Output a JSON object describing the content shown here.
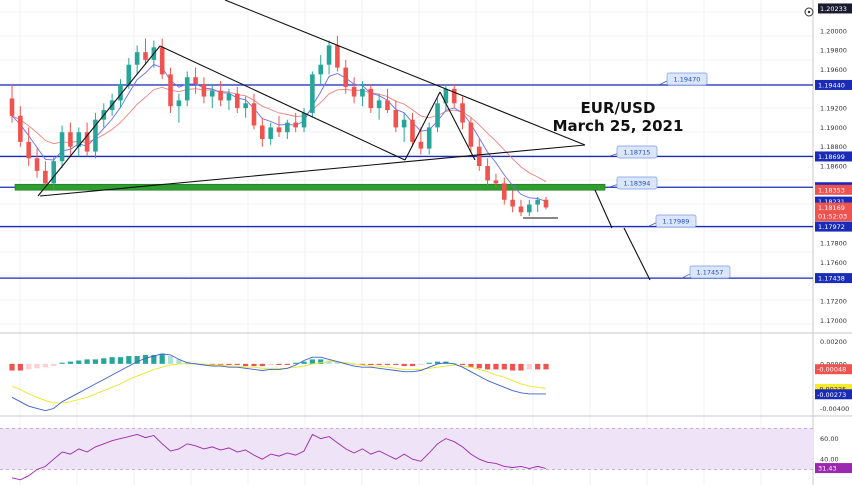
{
  "colors": {
    "bull": "#26a69a",
    "bear": "#ef5350",
    "level_line": "#1a2bb8",
    "support_band": "#2e9e2e",
    "ema_fast": "#6b6bff",
    "ema_slow": "#f08080",
    "macd_line": "#3c5fd0",
    "signal_line": "#e6e62a",
    "rsi_line": "#9c27b0",
    "rsi_bg": "#efe3f7",
    "grid": "#f0f0f0",
    "callout_bg": "#dbe6fb",
    "tag_blue": "#1a2bb8",
    "tag_red": "#ef5350",
    "tag_dark": "#1b1b2f",
    "tag_yellow": "#f5ea2a"
  },
  "chart_data": [
    {
      "type": "candlestick",
      "title": "EUR/USD",
      "subtitle": "March 25, 2021",
      "ylim": [
        1.169,
        1.203
      ],
      "y_ticks": [
        "1.20233",
        "1.20000",
        "1.19800",
        "1.19600",
        "1.19200",
        "1.19000",
        "1.18800",
        "1.18600",
        "1.17800",
        "1.17600",
        "1.17200",
        "1.17000"
      ],
      "levels": [
        {
          "value": 1.1944,
          "label": "1.19440",
          "callout": "1.19470",
          "tag": "blue"
        },
        {
          "value": 1.18699,
          "label": "1.18699",
          "callout": "1.18715",
          "tag": "blue"
        },
        {
          "value": 1.1838,
          "label": "1.18380",
          "callout": "1.18394",
          "tag": "blue"
        },
        {
          "value": 1.17972,
          "label": "1.17972",
          "callout": "1.17989",
          "tag": "blue"
        },
        {
          "value": 1.17438,
          "label": "1.17438",
          "callout": "1.17457",
          "tag": "blue"
        }
      ],
      "price_tags": [
        {
          "value": 1.18353,
          "label": "1.18353",
          "tag": "red"
        },
        {
          "value": 1.18231,
          "label": "1.18231",
          "tag": "blue"
        },
        {
          "value": 1.18169,
          "label": "1.18169",
          "tag": "red"
        },
        {
          "value": 1.1808,
          "label": "01:52:03",
          "tag": "red"
        }
      ],
      "candles": [
        {
          "o": 1.193,
          "h": 1.1945,
          "l": 1.1905,
          "c": 1.1912
        },
        {
          "o": 1.1912,
          "h": 1.1922,
          "l": 1.188,
          "c": 1.1885
        },
        {
          "o": 1.1885,
          "h": 1.19,
          "l": 1.186,
          "c": 1.1868
        },
        {
          "o": 1.1868,
          "h": 1.1878,
          "l": 1.1848,
          "c": 1.1855
        },
        {
          "o": 1.1855,
          "h": 1.1865,
          "l": 1.1838,
          "c": 1.1842
        },
        {
          "o": 1.1842,
          "h": 1.187,
          "l": 1.1835,
          "c": 1.1865
        },
        {
          "o": 1.1865,
          "h": 1.1902,
          "l": 1.1858,
          "c": 1.1895
        },
        {
          "o": 1.1895,
          "h": 1.1905,
          "l": 1.187,
          "c": 1.188
        },
        {
          "o": 1.188,
          "h": 1.19,
          "l": 1.187,
          "c": 1.1895
        },
        {
          "o": 1.1895,
          "h": 1.1905,
          "l": 1.187,
          "c": 1.1875
        },
        {
          "o": 1.1875,
          "h": 1.1915,
          "l": 1.1868,
          "c": 1.1908
        },
        {
          "o": 1.1908,
          "h": 1.1925,
          "l": 1.19,
          "c": 1.1918
        },
        {
          "o": 1.1918,
          "h": 1.1935,
          "l": 1.1912,
          "c": 1.1928
        },
        {
          "o": 1.1928,
          "h": 1.195,
          "l": 1.192,
          "c": 1.1945
        },
        {
          "o": 1.1945,
          "h": 1.1972,
          "l": 1.194,
          "c": 1.1965
        },
        {
          "o": 1.1965,
          "h": 1.1985,
          "l": 1.1955,
          "c": 1.1978
        },
        {
          "o": 1.1978,
          "h": 1.1992,
          "l": 1.1965,
          "c": 1.197
        },
        {
          "o": 1.197,
          "h": 1.199,
          "l": 1.1962,
          "c": 1.1983
        },
        {
          "o": 1.1983,
          "h": 1.1992,
          "l": 1.195,
          "c": 1.1955
        },
        {
          "o": 1.1955,
          "h": 1.1962,
          "l": 1.1915,
          "c": 1.1922
        },
        {
          "o": 1.1922,
          "h": 1.1935,
          "l": 1.1905,
          "c": 1.1928
        },
        {
          "o": 1.1928,
          "h": 1.1958,
          "l": 1.1922,
          "c": 1.1952
        },
        {
          "o": 1.1952,
          "h": 1.1962,
          "l": 1.1935,
          "c": 1.1945
        },
        {
          "o": 1.1945,
          "h": 1.1952,
          "l": 1.1925,
          "c": 1.1932
        },
        {
          "o": 1.1932,
          "h": 1.1945,
          "l": 1.192,
          "c": 1.1938
        },
        {
          "o": 1.1938,
          "h": 1.1948,
          "l": 1.1922,
          "c": 1.1928
        },
        {
          "o": 1.1928,
          "h": 1.194,
          "l": 1.1918,
          "c": 1.1935
        },
        {
          "o": 1.1935,
          "h": 1.1942,
          "l": 1.1915,
          "c": 1.192
        },
        {
          "o": 1.192,
          "h": 1.1932,
          "l": 1.191,
          "c": 1.1925
        },
        {
          "o": 1.1925,
          "h": 1.1935,
          "l": 1.1898,
          "c": 1.1902
        },
        {
          "o": 1.1902,
          "h": 1.191,
          "l": 1.188,
          "c": 1.1888
        },
        {
          "o": 1.1888,
          "h": 1.1905,
          "l": 1.1882,
          "c": 1.19
        },
        {
          "o": 1.19,
          "h": 1.1912,
          "l": 1.189,
          "c": 1.1895
        },
        {
          "o": 1.1895,
          "h": 1.1908,
          "l": 1.1888,
          "c": 1.1905
        },
        {
          "o": 1.1905,
          "h": 1.1915,
          "l": 1.1895,
          "c": 1.19
        },
        {
          "o": 1.19,
          "h": 1.192,
          "l": 1.1895,
          "c": 1.1915
        },
        {
          "o": 1.1915,
          "h": 1.1958,
          "l": 1.191,
          "c": 1.1955
        },
        {
          "o": 1.1955,
          "h": 1.1975,
          "l": 1.1945,
          "c": 1.1965
        },
        {
          "o": 1.1965,
          "h": 1.199,
          "l": 1.1955,
          "c": 1.1985
        },
        {
          "o": 1.1985,
          "h": 1.1995,
          "l": 1.1958,
          "c": 1.1962
        },
        {
          "o": 1.1962,
          "h": 1.197,
          "l": 1.1935,
          "c": 1.1942
        },
        {
          "o": 1.1942,
          "h": 1.1952,
          "l": 1.1925,
          "c": 1.1932
        },
        {
          "o": 1.1932,
          "h": 1.1948,
          "l": 1.1922,
          "c": 1.194
        },
        {
          "o": 1.194,
          "h": 1.1945,
          "l": 1.1915,
          "c": 1.192
        },
        {
          "o": 1.192,
          "h": 1.1935,
          "l": 1.1908,
          "c": 1.1928
        },
        {
          "o": 1.1928,
          "h": 1.194,
          "l": 1.1915,
          "c": 1.1918
        },
        {
          "o": 1.1918,
          "h": 1.1928,
          "l": 1.1895,
          "c": 1.19
        },
        {
          "o": 1.19,
          "h": 1.1915,
          "l": 1.1885,
          "c": 1.1908
        },
        {
          "o": 1.1908,
          "h": 1.1915,
          "l": 1.188,
          "c": 1.1885
        },
        {
          "o": 1.1885,
          "h": 1.19,
          "l": 1.1872,
          "c": 1.1878
        },
        {
          "o": 1.1878,
          "h": 1.1905,
          "l": 1.1872,
          "c": 1.19
        },
        {
          "o": 1.19,
          "h": 1.193,
          "l": 1.1895,
          "c": 1.1925
        },
        {
          "o": 1.1925,
          "h": 1.1945,
          "l": 1.1918,
          "c": 1.194
        },
        {
          "o": 1.194,
          "h": 1.1945,
          "l": 1.192,
          "c": 1.1925
        },
        {
          "o": 1.1925,
          "h": 1.1932,
          "l": 1.1898,
          "c": 1.1905
        },
        {
          "o": 1.1905,
          "h": 1.191,
          "l": 1.1875,
          "c": 1.188
        },
        {
          "o": 1.188,
          "h": 1.1888,
          "l": 1.1855,
          "c": 1.186
        },
        {
          "o": 1.186,
          "h": 1.1868,
          "l": 1.184,
          "c": 1.1845
        },
        {
          "o": 1.1845,
          "h": 1.1852,
          "l": 1.1838,
          "c": 1.1842
        },
        {
          "o": 1.1842,
          "h": 1.1848,
          "l": 1.182,
          "c": 1.1825
        },
        {
          "o": 1.1825,
          "h": 1.1835,
          "l": 1.1812,
          "c": 1.1818
        },
        {
          "o": 1.1818,
          "h": 1.1825,
          "l": 1.1808,
          "c": 1.1812
        },
        {
          "o": 1.1812,
          "h": 1.1825,
          "l": 1.1808,
          "c": 1.182
        },
        {
          "o": 1.182,
          "h": 1.1828,
          "l": 1.1812,
          "c": 1.1825
        },
        {
          "o": 1.1825,
          "h": 1.1828,
          "l": 1.1815,
          "c": 1.1817
        }
      ],
      "macd": {
        "y_ticks": [
          "0.00200",
          "0.00000",
          "-0.00048",
          "-0.00225",
          "-0.00273",
          "-0.00400"
        ],
        "ylim": [
          -0.0045,
          0.0025
        ],
        "tags": [
          {
            "value": -0.00048,
            "label": "-0.00048",
            "tag": "red"
          },
          {
            "value": -0.00225,
            "label": "-0.00225",
            "tag": "yellow"
          },
          {
            "value": -0.00273,
            "label": "-0.00273",
            "tag": "blue"
          }
        ],
        "histogram": [
          -0.0006,
          -0.0006,
          -0.0005,
          -0.0004,
          -0.0003,
          -0.0002,
          0.0001,
          0.0002,
          0.0003,
          0.0004,
          0.0004,
          0.0005,
          0.0006,
          0.0006,
          0.0007,
          0.0007,
          0.0008,
          0.0008,
          0.0009,
          0.0007,
          0.0004,
          0.0002,
          0.0001,
          0.0,
          -0.0001,
          -0.0001,
          -0.0001,
          -0.0001,
          -0.0002,
          -0.0002,
          -0.0002,
          -0.0001,
          -0.0001,
          -0.0001,
          0.0001,
          0.0002,
          0.0004,
          0.0004,
          0.0003,
          0.0002,
          0.0001,
          0.0,
          -0.0001,
          -0.0001,
          -0.0001,
          -0.0001,
          -0.0001,
          -0.0002,
          -0.0002,
          -0.0001,
          0.0001,
          0.0002,
          0.0002,
          0.0001,
          -0.0001,
          -0.0003,
          -0.0004,
          -0.0005,
          -0.0005,
          -0.0005,
          -0.0006,
          -0.0006,
          -0.0005,
          -0.0005,
          -0.0005
        ],
        "macd_line": [
          -0.003,
          -0.0034,
          -0.0038,
          -0.004,
          -0.0042,
          -0.004,
          -0.0034,
          -0.003,
          -0.0026,
          -0.0022,
          -0.0018,
          -0.0014,
          -0.001,
          -0.0006,
          -0.0002,
          0.0002,
          0.0005,
          0.0007,
          0.0009,
          0.0008,
          0.0004,
          0.0001,
          0.0,
          -0.0001,
          -0.0002,
          -0.0002,
          -0.0003,
          -0.0003,
          -0.0004,
          -0.0005,
          -0.0006,
          -0.0005,
          -0.0005,
          -0.0004,
          -0.0001,
          0.0003,
          0.0006,
          0.0006,
          0.0004,
          0.0002,
          0.0,
          -0.0002,
          -0.0003,
          -0.0003,
          -0.0004,
          -0.0005,
          -0.0006,
          -0.0007,
          -0.0007,
          -0.0006,
          -0.0003,
          0.0,
          0.0001,
          0.0,
          -0.0003,
          -0.0007,
          -0.0011,
          -0.0015,
          -0.0018,
          -0.0021,
          -0.0024,
          -0.0026,
          -0.0027,
          -0.0027,
          -0.0027
        ],
        "signal_line": [
          -0.002,
          -0.0023,
          -0.0027,
          -0.003,
          -0.0033,
          -0.0035,
          -0.0035,
          -0.0034,
          -0.0032,
          -0.003,
          -0.0027,
          -0.0024,
          -0.0021,
          -0.0018,
          -0.0014,
          -0.0011,
          -0.0008,
          -0.0005,
          -0.0003,
          -0.0001,
          0.0,
          0.0,
          0.0,
          0.0,
          -0.0001,
          -0.0001,
          -0.0002,
          -0.0002,
          -0.0003,
          -0.0003,
          -0.0004,
          -0.0004,
          -0.0004,
          -0.0004,
          -0.0003,
          -0.0002,
          0.0,
          0.0001,
          0.0002,
          0.0002,
          0.0001,
          0.0,
          -0.0001,
          -0.0002,
          -0.0002,
          -0.0003,
          -0.0004,
          -0.0005,
          -0.0005,
          -0.0005,
          -0.0004,
          -0.0003,
          -0.0002,
          -0.0001,
          -0.0002,
          -0.0003,
          -0.0005,
          -0.0007,
          -0.001,
          -0.0012,
          -0.0015,
          -0.0018,
          -0.002,
          -0.0021,
          -0.0022
        ]
      },
      "rsi": {
        "y_ticks": [
          "60.00",
          "40.00",
          "31.43"
        ],
        "ylim": [
          15,
          80
        ],
        "band": [
          30,
          70
        ],
        "tag": {
          "value": 31.43,
          "label": "31.43"
        },
        "values": [
          22,
          20,
          24,
          30,
          33,
          40,
          47,
          45,
          50,
          47,
          52,
          55,
          58,
          60,
          62,
          64,
          61,
          63,
          55,
          48,
          50,
          55,
          53,
          50,
          52,
          49,
          51,
          47,
          49,
          44,
          40,
          45,
          43,
          46,
          44,
          48,
          64,
          60,
          62,
          56,
          50,
          46,
          50,
          45,
          48,
          44,
          40,
          45,
          40,
          38,
          46,
          55,
          60,
          57,
          52,
          45,
          40,
          37,
          36,
          33,
          32,
          33,
          31,
          33,
          31
        ]
      }
    }
  ]
}
